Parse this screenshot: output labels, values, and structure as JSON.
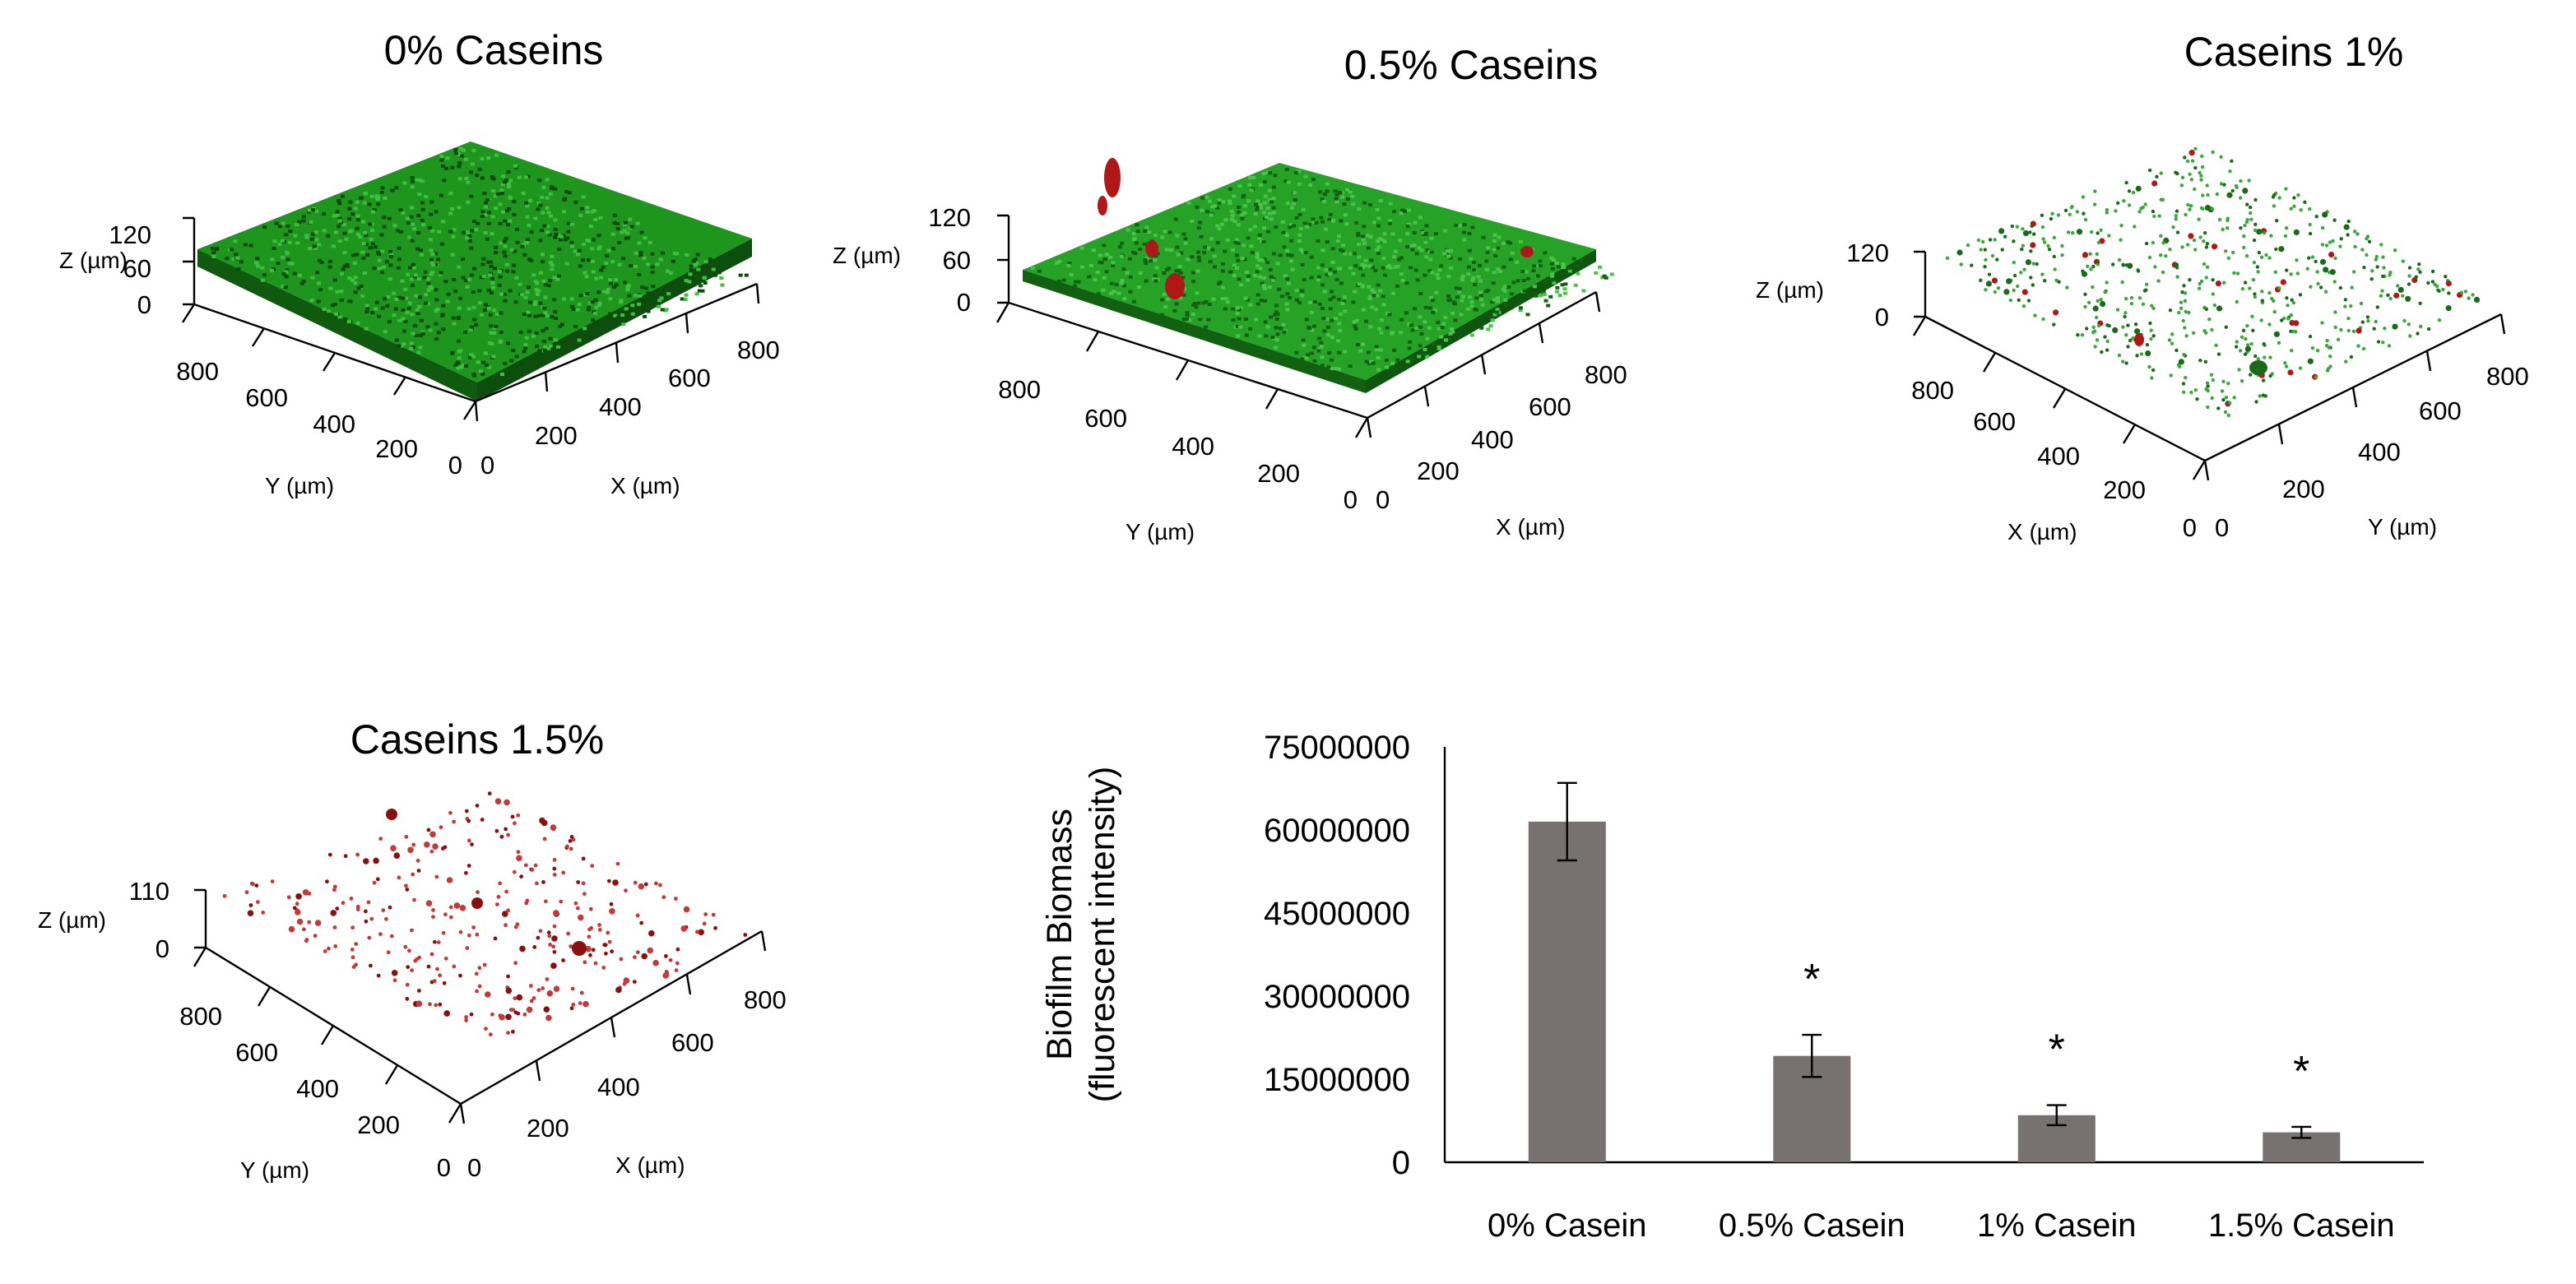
{
  "panels": [
    {
      "title": "0% Caseins",
      "z_label": "Z (µm)",
      "z_ticks": [
        "120",
        "60",
        "0"
      ],
      "left_axis_label": "Y (µm)",
      "left_axis_ticks": [
        "800",
        "600",
        "400",
        "200",
        "0"
      ],
      "right_axis_label": "X (µm)",
      "right_axis_ticks": [
        "0",
        "200",
        "400",
        "600",
        "800"
      ],
      "colors": {
        "biomass": "#1f9b1f",
        "dark": "#0c4a0c",
        "dead": "#b01818"
      }
    },
    {
      "title": "0.5% Caseins",
      "z_label": "Z (µm)",
      "z_ticks": [
        "120",
        "60",
        "0"
      ],
      "left_axis_label": "Y (µm)",
      "left_axis_ticks": [
        "800",
        "600",
        "400",
        "200",
        "0"
      ],
      "right_axis_label": "X (µm)",
      "right_axis_ticks": [
        "0",
        "200",
        "400",
        "600",
        "800"
      ],
      "colors": {
        "biomass": "#2aa42a",
        "dark": "#136013",
        "dead": "#b01818"
      }
    },
    {
      "title": "Caseins 1%",
      "z_label": "Z (µm)",
      "z_ticks": [
        "120",
        "0"
      ],
      "left_axis_label": "X (µm)",
      "left_axis_ticks": [
        "800",
        "600",
        "400",
        "200",
        "0"
      ],
      "right_axis_label": "Y (µm)",
      "right_axis_ticks": [
        "0",
        "200",
        "400",
        "600",
        "800"
      ],
      "colors": {
        "biomass": "#3aa83a",
        "dark": "#1a6a1a",
        "dead": "#b01818"
      }
    },
    {
      "title": "Caseins 1.5%",
      "z_label": "Z (µm)",
      "z_ticks": [
        "110",
        "0"
      ],
      "left_axis_label": "Y (µm)",
      "left_axis_ticks": [
        "800",
        "600",
        "400",
        "200",
        "0"
      ],
      "right_axis_label": "X (µm)",
      "right_axis_ticks": [
        "0",
        "200",
        "400",
        "600",
        "800"
      ],
      "colors": {
        "biomass": "#c43a3a",
        "dark": "#8a1010",
        "dead": "#8a1010"
      }
    }
  ],
  "chart_data": {
    "type": "bar",
    "title": "",
    "xlabel": "",
    "ylabel": [
      "Biofilm Biomass",
      "(fluorescent intensity)"
    ],
    "categories": [
      "0% Casein",
      "0.5% Casein",
      "1% Casein",
      "1.5% Casein"
    ],
    "values": [
      61500000,
      19200000,
      8500000,
      5400000
    ],
    "errors": [
      7000000,
      3800000,
      1800000,
      1000000
    ],
    "significance": [
      "",
      "*",
      "*",
      "*"
    ],
    "ylim": [
      0,
      75000000
    ],
    "yticks": [
      "75000000",
      "60000000",
      "45000000",
      "30000000",
      "15000000",
      "0"
    ],
    "ytick_values": [
      75000000,
      60000000,
      45000000,
      30000000,
      15000000,
      0
    ],
    "grid": false,
    "bar_color": "#777171"
  }
}
